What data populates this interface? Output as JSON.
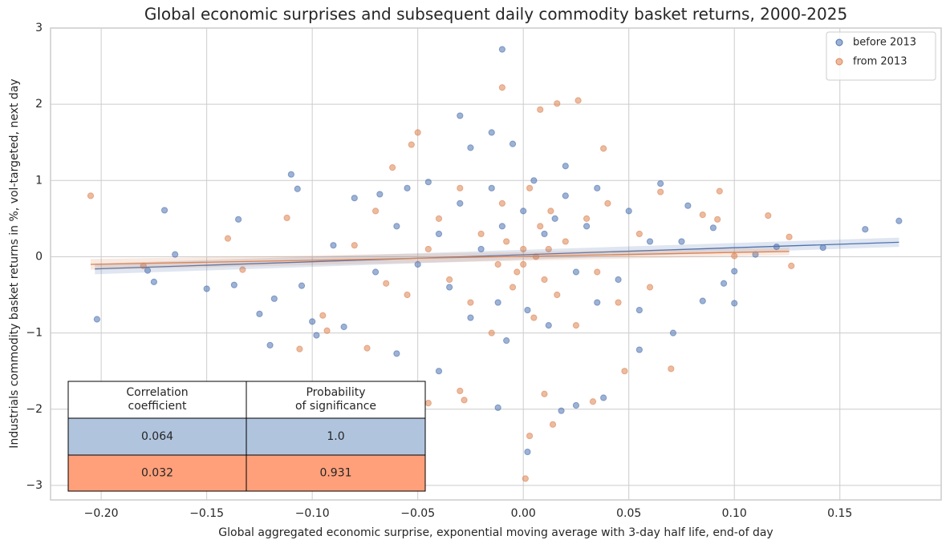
{
  "chart_data": {
    "type": "scatter",
    "title": "Global economic surprises and subsequent daily commodity basket returns, 2000-2025",
    "x_label": "Global aggregated economic surprise, exponential moving average with 3-day half life, end-of day",
    "y_label": "Industrials commodity basket returns in %, vol-targeted, next day",
    "xlim": [
      -0.224,
      0.198
    ],
    "ylim": [
      -3.19,
      3.0
    ],
    "xticks": [
      {
        "value": -0.2,
        "label": "−0.20"
      },
      {
        "value": -0.15,
        "label": "−0.15"
      },
      {
        "value": -0.1,
        "label": "−0.10"
      },
      {
        "value": -0.05,
        "label": "−0.05"
      },
      {
        "value": 0,
        "label": "0.00"
      },
      {
        "value": 0.05,
        "label": "0.05"
      },
      {
        "value": 0.1,
        "label": "0.10"
      },
      {
        "value": 0.15,
        "label": "0.15"
      }
    ],
    "yticks": [
      {
        "value": -3,
        "label": "−3"
      },
      {
        "value": -2,
        "label": "−2"
      },
      {
        "value": -1,
        "label": "−1"
      },
      0,
      1,
      2,
      3
    ],
    "grid": true,
    "legend": "upper right",
    "series": [
      {
        "name": "before 2013",
        "color": "#4c72b0",
        "x": [
          -0.202,
          -0.17,
          -0.178,
          -0.175,
          -0.165,
          -0.15,
          -0.135,
          -0.137,
          -0.11,
          -0.107,
          -0.118,
          -0.12,
          -0.125,
          -0.105,
          -0.1,
          -0.098,
          -0.08,
          -0.068,
          -0.085,
          -0.06,
          -0.03,
          -0.01,
          -0.025,
          -0.015,
          -0.005,
          0.02,
          0.025,
          0.018,
          0.002,
          -0.012,
          0.038,
          0.065,
          0.078,
          0.085,
          0.09,
          0.1,
          0.11,
          0.12,
          0.162,
          0.178,
          0.142,
          0.1,
          0.071,
          0.055,
          -0.04,
          -0.045,
          0.035,
          -0.04,
          -0.035,
          -0.03,
          -0.025,
          -0.02,
          -0.015,
          -0.012,
          -0.01,
          -0.008,
          0,
          0.002,
          0.005,
          0.01,
          0.012,
          0.015,
          0.02,
          0.025,
          0.03,
          0.035,
          0.045,
          0.05,
          -0.05,
          0.055,
          0.06,
          -0.06,
          -0.07,
          0.075,
          -0.055,
          -0.09,
          0.095
        ],
        "values": [
          -0.82,
          0.61,
          -0.18,
          -0.33,
          0.03,
          -0.42,
          0.49,
          -0.37,
          1.08,
          0.89,
          -0.55,
          -1.16,
          -0.75,
          -0.38,
          -0.85,
          -1.03,
          0.77,
          0.82,
          -0.92,
          -1.27,
          1.85,
          2.72,
          1.43,
          1.63,
          1.48,
          1.19,
          -1.95,
          -2.02,
          -2.56,
          -1.98,
          -1.85,
          0.96,
          0.67,
          -0.58,
          0.38,
          -0.19,
          0.03,
          0.13,
          0.36,
          0.47,
          0.12,
          -0.61,
          -1.0,
          -1.22,
          -1.5,
          0.98,
          0.9,
          0.3,
          -0.4,
          0.7,
          -0.8,
          0.1,
          0.9,
          -0.6,
          0.4,
          -1.1,
          0.6,
          -0.7,
          1.0,
          0.3,
          -0.9,
          0.5,
          0.8,
          -0.2,
          0.4,
          -0.6,
          -0.3,
          0.6,
          -0.1,
          -0.7,
          0.2,
          0.4,
          -0.2,
          0.2,
          0.9,
          0.15,
          -0.35
        ],
        "fit": {
          "x": [
            -0.203,
            0.178
          ],
          "y": [
            -0.16,
            0.19
          ],
          "ci_low": [
            -0.23,
            0.13
          ],
          "ci_high": [
            -0.09,
            0.25
          ]
        }
      },
      {
        "name": "from 2013",
        "color": "#dd8452",
        "x": [
          -0.205,
          -0.18,
          -0.14,
          -0.133,
          -0.112,
          -0.106,
          -0.095,
          -0.093,
          -0.074,
          -0.062,
          -0.05,
          -0.053,
          -0.045,
          -0.03,
          -0.028,
          -0.01,
          0.008,
          0.016,
          0.026,
          0.038,
          0.01,
          0.003,
          0.001,
          0.014,
          0.033,
          0.048,
          0.07,
          0.093,
          0.116,
          0.126,
          0.127,
          0.1,
          0.092,
          0.085,
          0.065,
          -0.08,
          -0.065,
          -0.04,
          -0.035,
          -0.03,
          -0.025,
          -0.02,
          -0.015,
          -0.01,
          -0.005,
          0,
          0,
          0.003,
          0.005,
          0.008,
          0.01,
          0.013,
          0.016,
          0.02,
          0.025,
          0.03,
          0.035,
          0.04,
          0.045,
          -0.045,
          -0.008,
          -0.003,
          0.006,
          -0.012,
          0.012,
          0.055,
          -0.055,
          0.06,
          -0.07
        ],
        "values": [
          0.8,
          -0.12,
          0.24,
          -0.17,
          0.51,
          -1.21,
          -0.77,
          -0.97,
          -1.2,
          1.17,
          1.63,
          1.47,
          -1.92,
          -1.76,
          -1.88,
          2.22,
          1.93,
          2.01,
          2.05,
          1.42,
          -1.8,
          -2.35,
          -2.91,
          -2.2,
          -1.9,
          -1.5,
          -1.47,
          0.86,
          0.54,
          0.26,
          -0.12,
          0.01,
          0.49,
          0.55,
          0.85,
          0.15,
          -0.35,
          0.5,
          -0.3,
          0.9,
          -0.6,
          0.3,
          -1.0,
          0.7,
          -0.4,
          0.1,
          -0.1,
          0.9,
          -0.8,
          0.4,
          -0.3,
          0.6,
          -0.5,
          0.2,
          -0.9,
          0.5,
          -0.2,
          0.7,
          -0.6,
          0.1,
          0.2,
          -0.2,
          0.0,
          -0.1,
          0.1,
          0.3,
          -0.5,
          -0.4,
          0.6
        ],
        "fit": {
          "x": [
            -0.205,
            0.126
          ],
          "y": [
            -0.1,
            0.07
          ],
          "ci_low": [
            -0.17,
            0.02
          ],
          "ci_high": [
            -0.03,
            0.12
          ]
        }
      }
    ],
    "table": {
      "header": [
        [
          "Correlation",
          "coefficient"
        ],
        [
          "Probability",
          "of significance"
        ]
      ],
      "rows": [
        [
          "0.064",
          "1.0"
        ],
        [
          "0.032",
          "0.931"
        ]
      ],
      "row_colors": [
        "#b0c4de",
        "#ffa07a"
      ]
    }
  }
}
